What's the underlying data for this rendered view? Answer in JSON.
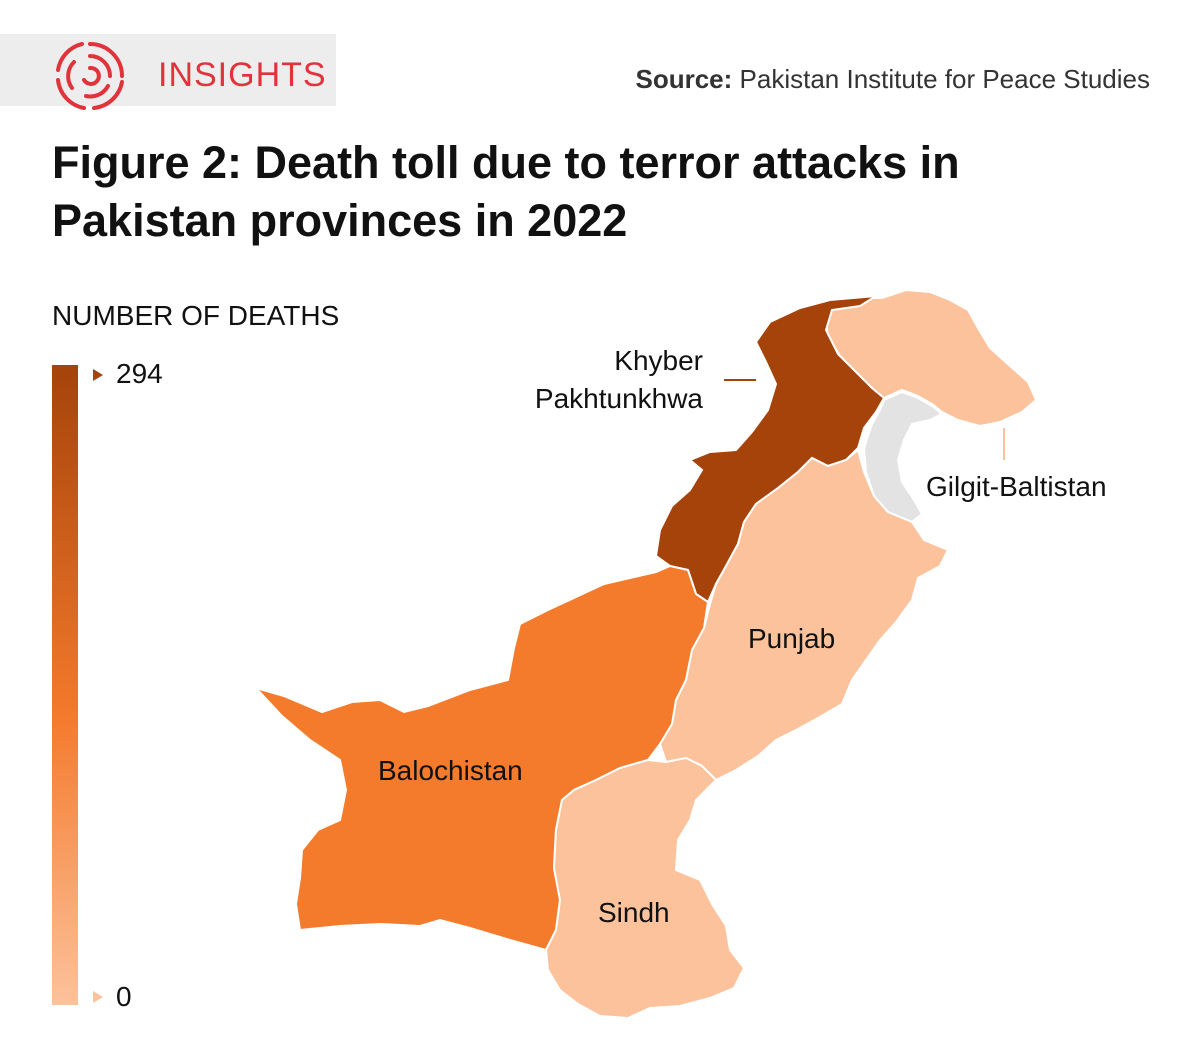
{
  "header": {
    "brand": "INSIGHTS",
    "source_label": "Source:",
    "source_text": "Pakistan Institute for Peace Studies"
  },
  "title": "Figure 2: Death toll due to terror attacks in Pakistan provinces in 2022",
  "legend": {
    "title": "NUMBER OF DEATHS",
    "max_label": "294",
    "min_label": "0",
    "max_value": 294,
    "min_value": 0,
    "color_high": "#a5430a",
    "color_mid": "#f47a2c",
    "color_low": "#fcc29c"
  },
  "map": {
    "regions": [
      {
        "label_lines": [
          "Khyber",
          "Pakhtunkhwa"
        ],
        "color": "#a5430a"
      },
      {
        "label_lines": [
          "Gilgit-Baltistan"
        ],
        "color": "#fcc29c"
      },
      {
        "label_lines": [
          "Punjab"
        ],
        "color": "#fcc29c"
      },
      {
        "label_lines": [
          "Balochistan"
        ],
        "color": "#f47a2c"
      },
      {
        "label_lines": [
          "Sindh"
        ],
        "color": "#fcc29c"
      }
    ],
    "disputed_color": "#e3e3e3",
    "brand_color": "#e0333c"
  }
}
